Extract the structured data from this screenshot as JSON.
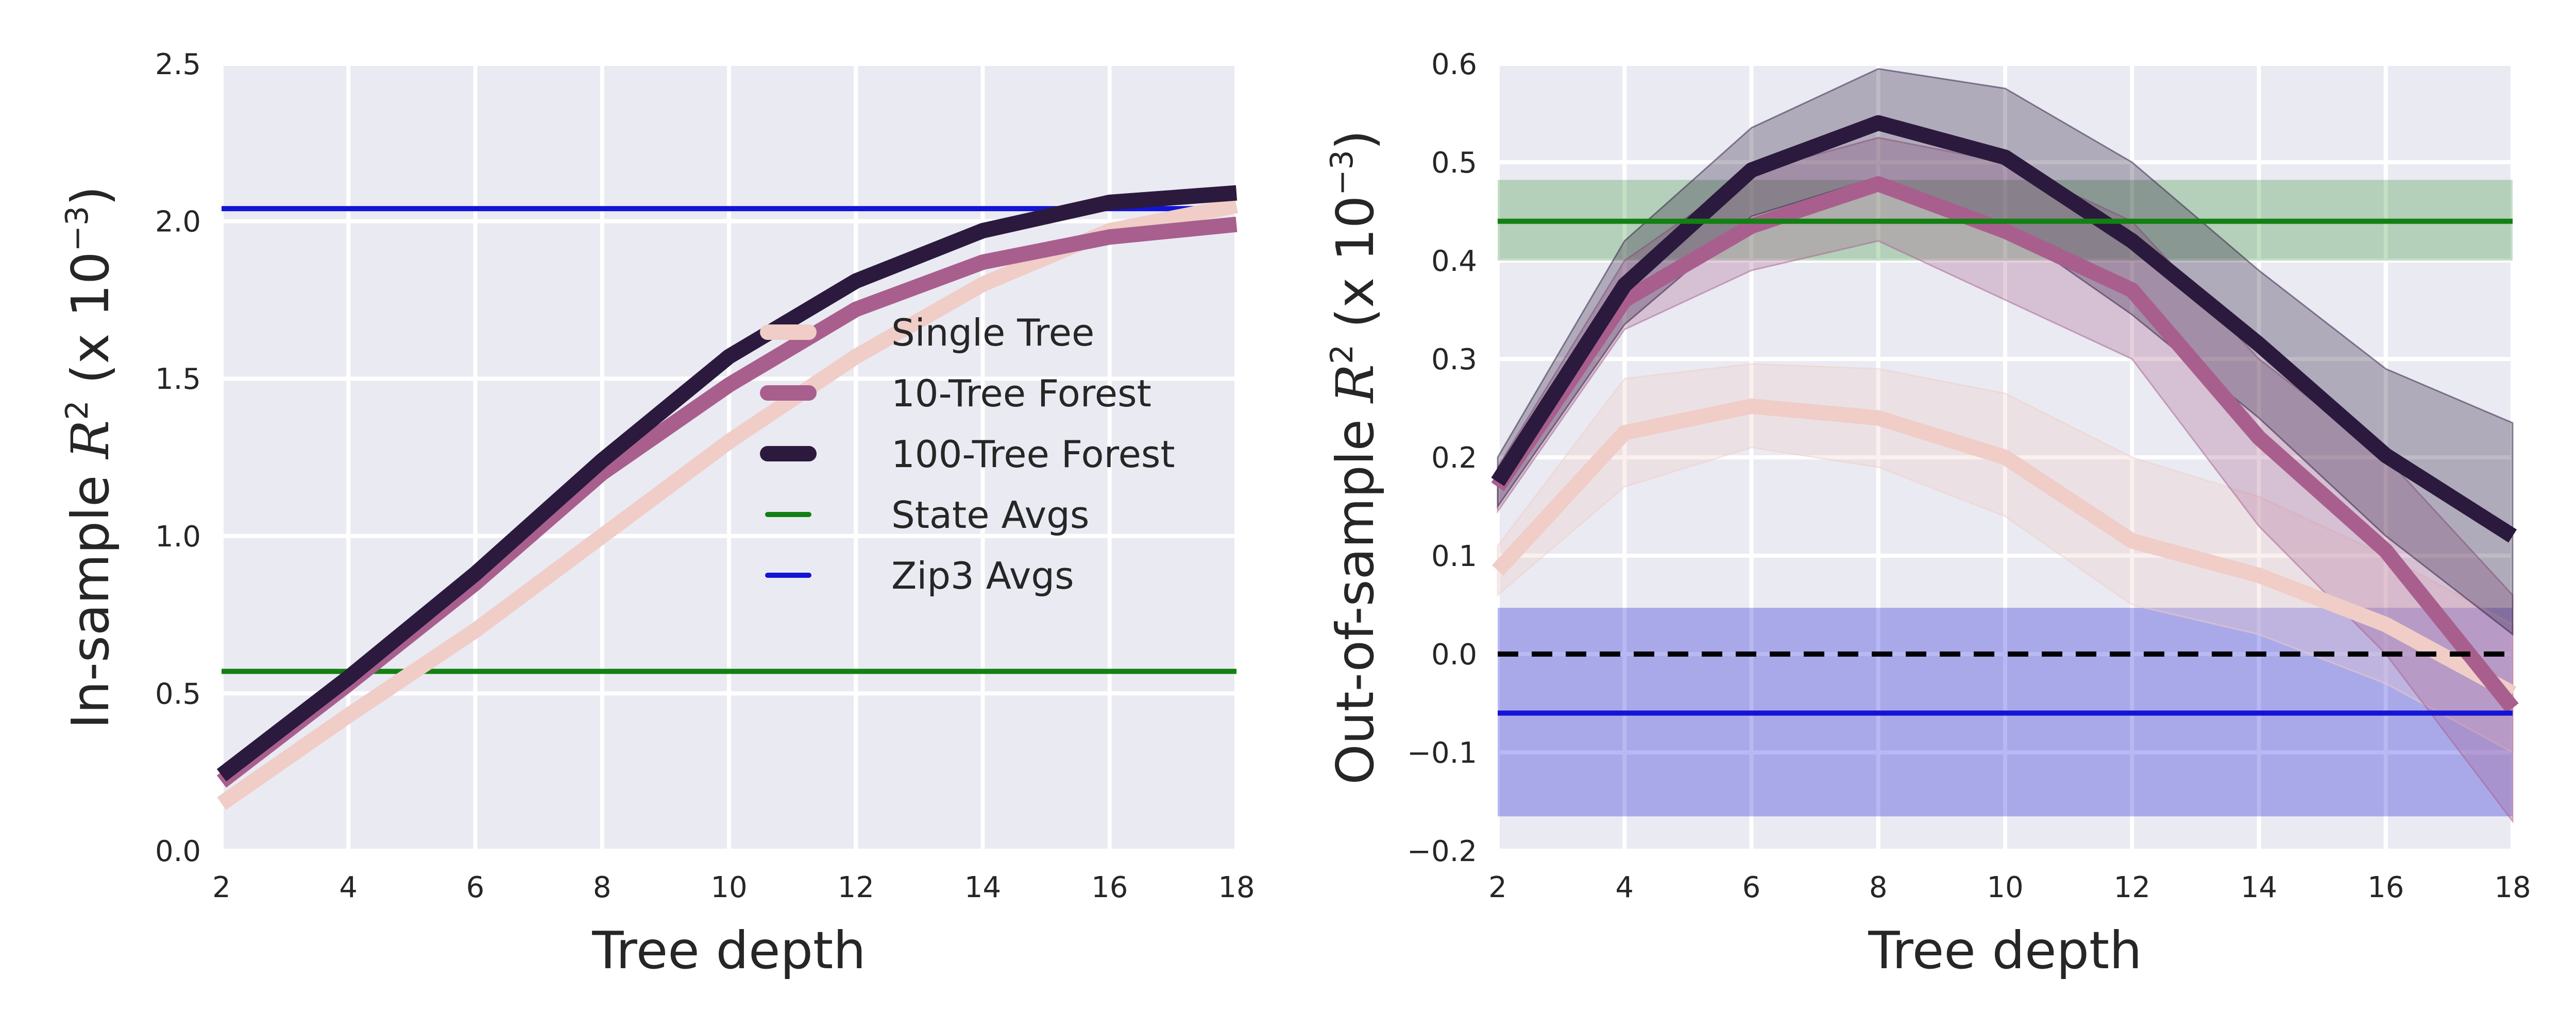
{
  "chart_data": [
    {
      "type": "line",
      "xlabel": "Tree depth",
      "ylabel_text": "In-sample",
      "ylabel_math": "R",
      "ylabel_sup": "2",
      "ylabel_unit_open": "(x 10",
      "ylabel_unit_sup": "−3",
      "ylabel_unit_close": ")",
      "xlim": [
        2,
        18
      ],
      "ylim": [
        0.0,
        2.5
      ],
      "x_ticks": [
        "2",
        "4",
        "6",
        "8",
        "10",
        "12",
        "14",
        "16",
        "18"
      ],
      "y_ticks": [
        "0.0",
        "0.5",
        "1.0",
        "1.5",
        "2.0",
        "2.5"
      ],
      "grid": true,
      "legend_position": "center-right",
      "x": [
        2,
        4,
        6,
        8,
        10,
        12,
        14,
        16,
        18
      ],
      "series": [
        {
          "name": "Single Tree",
          "color": "#f0cdc7",
          "values": [
            0.15,
            0.43,
            0.7,
            1.0,
            1.3,
            1.57,
            1.8,
            1.97,
            2.05
          ]
        },
        {
          "name": "10-Tree Forest",
          "color": "#a85f8e",
          "values": [
            0.22,
            0.53,
            0.85,
            1.2,
            1.48,
            1.72,
            1.87,
            1.95,
            1.99
          ]
        },
        {
          "name": "100-Tree Forest",
          "color": "#2b1a3d",
          "values": [
            0.24,
            0.55,
            0.88,
            1.24,
            1.57,
            1.81,
            1.97,
            2.06,
            2.09
          ]
        }
      ],
      "hlines": [
        {
          "name": "State Avgs",
          "color": "#128012",
          "value": 0.57
        },
        {
          "name": "Zip3 Avgs",
          "color": "#1414d6",
          "value": 2.04
        }
      ]
    },
    {
      "type": "line",
      "xlabel": "Tree depth",
      "ylabel_text": "Out-of-sample",
      "ylabel_math": "R",
      "ylabel_sup": "2",
      "ylabel_unit_open": "(x 10",
      "ylabel_unit_sup": "−3",
      "ylabel_unit_close": ")",
      "xlim": [
        2,
        18
      ],
      "ylim": [
        -0.2,
        0.6
      ],
      "x_ticks": [
        "2",
        "4",
        "6",
        "8",
        "10",
        "12",
        "14",
        "16",
        "18"
      ],
      "y_ticks": [
        "−0.2",
        "−0.1",
        "0.0",
        "0.1",
        "0.2",
        "0.3",
        "0.4",
        "0.5",
        "0.6"
      ],
      "grid": true,
      "x": [
        2,
        4,
        6,
        8,
        10,
        12,
        14,
        16,
        18
      ],
      "series": [
        {
          "name": "Single Tree",
          "color": "#f0cdc7",
          "values": [
            0.085,
            0.225,
            0.252,
            0.24,
            0.2,
            0.115,
            0.08,
            0.03,
            -0.04
          ],
          "lower": [
            0.06,
            0.17,
            0.21,
            0.19,
            0.14,
            0.05,
            0.02,
            -0.03,
            -0.1
          ],
          "upper": [
            0.11,
            0.28,
            0.295,
            0.29,
            0.265,
            0.2,
            0.16,
            0.1,
            0.03
          ]
        },
        {
          "name": "10-Tree Forest",
          "color": "#a85f8e",
          "values": [
            0.17,
            0.36,
            0.435,
            0.478,
            0.43,
            0.37,
            0.22,
            0.105,
            -0.055
          ],
          "lower": [
            0.145,
            0.33,
            0.39,
            0.42,
            0.36,
            0.3,
            0.13,
            0.0,
            -0.17
          ],
          "upper": [
            0.19,
            0.4,
            0.49,
            0.525,
            0.5,
            0.44,
            0.3,
            0.2,
            0.06
          ]
        },
        {
          "name": "100-Tree Forest",
          "color": "#2b1a3d",
          "values": [
            0.175,
            0.375,
            0.492,
            0.54,
            0.505,
            0.42,
            0.315,
            0.202,
            0.12
          ],
          "lower": [
            0.15,
            0.335,
            0.445,
            0.485,
            0.435,
            0.345,
            0.24,
            0.12,
            0.02
          ],
          "upper": [
            0.2,
            0.42,
            0.535,
            0.595,
            0.575,
            0.5,
            0.39,
            0.29,
            0.235
          ]
        }
      ],
      "hlines": [
        {
          "name": "State Avgs",
          "color": "#128012",
          "value": 0.44,
          "band": [
            0.4,
            0.482
          ]
        },
        {
          "name": "Zip3 Avgs",
          "color": "#1414d6",
          "value": -0.06,
          "band": [
            -0.165,
            0.047
          ]
        },
        {
          "name": "zero",
          "color": "#000000",
          "value": 0.0,
          "dashed": true
        }
      ]
    }
  ]
}
